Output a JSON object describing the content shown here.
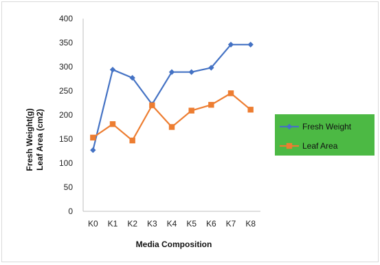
{
  "chart_data": {
    "type": "line",
    "categories": [
      "K0",
      "K1",
      "K2",
      "K3",
      "K4",
      "K5",
      "K6",
      "K7",
      "K8"
    ],
    "series": [
      {
        "name": "Fresh Weight",
        "color": "#4472C4",
        "marker": "diamond",
        "values": [
          127,
          294,
          277,
          222,
          289,
          289,
          298,
          346,
          346
        ]
      },
      {
        "name": "Leaf Area",
        "color": "#ED7D31",
        "marker": "square",
        "values": [
          153,
          181,
          147,
          220,
          175,
          209,
          221,
          245,
          211
        ]
      }
    ],
    "yticks": [
      "0",
      "50",
      "100",
      "150",
      "200",
      "250",
      "300",
      "350",
      "400"
    ],
    "ylim": [
      0,
      400
    ],
    "xlabel": "Media Composition",
    "ylabel_line1": "Fresh Weight(g)",
    "ylabel_line2": "Leaf Area (cm2)",
    "grid": false,
    "legend_position": "right",
    "legend_background": "#4CB944"
  }
}
